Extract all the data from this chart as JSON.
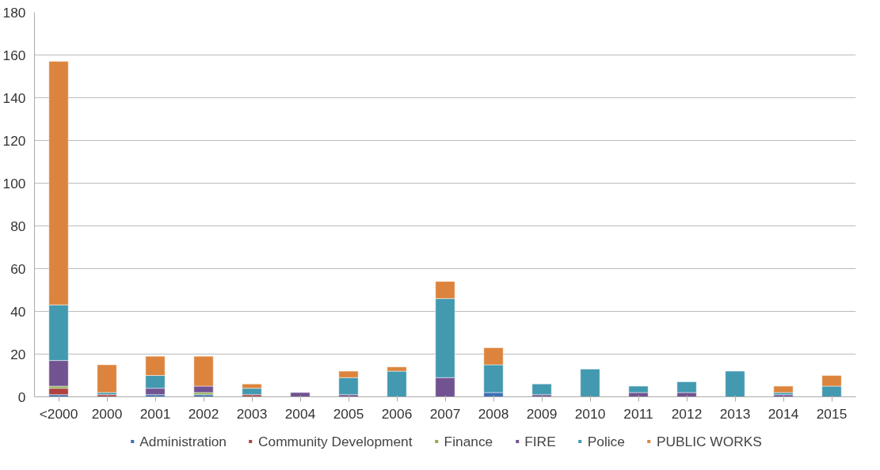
{
  "chart_data": {
    "type": "bar",
    "stacked": true,
    "categories": [
      "<2000",
      "2000",
      "2001",
      "2002",
      "2003",
      "2004",
      "2005",
      "2006",
      "2007",
      "2008",
      "2009",
      "2010",
      "2011",
      "2012",
      "2013",
      "2014",
      "2015"
    ],
    "series": [
      {
        "name": "Administration",
        "color": "#3d6fb4",
        "values": [
          1,
          0,
          1,
          1,
          0,
          0,
          0,
          0,
          0,
          2,
          0,
          0,
          0,
          0,
          0,
          0,
          0
        ]
      },
      {
        "name": "Community Development",
        "color": "#b0413e",
        "values": [
          3,
          1,
          0,
          0,
          1,
          0,
          0,
          0,
          0,
          0,
          0,
          0,
          0,
          0,
          0,
          0,
          0
        ]
      },
      {
        "name": "Finance",
        "color": "#8ead4e",
        "values": [
          1,
          0,
          0,
          1,
          0,
          0,
          0,
          0,
          0,
          0,
          0,
          0,
          0,
          0,
          0,
          0,
          0
        ]
      },
      {
        "name": "FIRE",
        "color": "#725391",
        "values": [
          12,
          0,
          3,
          3,
          0,
          2,
          1,
          0,
          9,
          0,
          1,
          0,
          2,
          2,
          0,
          1,
          0
        ]
      },
      {
        "name": "Police",
        "color": "#4299b0",
        "values": [
          26,
          1,
          6,
          0,
          3,
          0,
          8,
          12,
          37,
          13,
          5,
          13,
          3,
          5,
          12,
          1,
          5
        ]
      },
      {
        "name": "PUBLIC WORKS",
        "color": "#dc843d",
        "values": [
          114,
          13,
          9,
          14,
          2,
          0,
          3,
          2,
          8,
          8,
          0,
          0,
          0,
          0,
          0,
          3,
          5
        ]
      }
    ],
    "ylim": [
      0,
      180
    ],
    "yticks": [
      0,
      20,
      40,
      60,
      80,
      100,
      120,
      140,
      160,
      180
    ],
    "grid": "y",
    "legend": "bottom"
  }
}
